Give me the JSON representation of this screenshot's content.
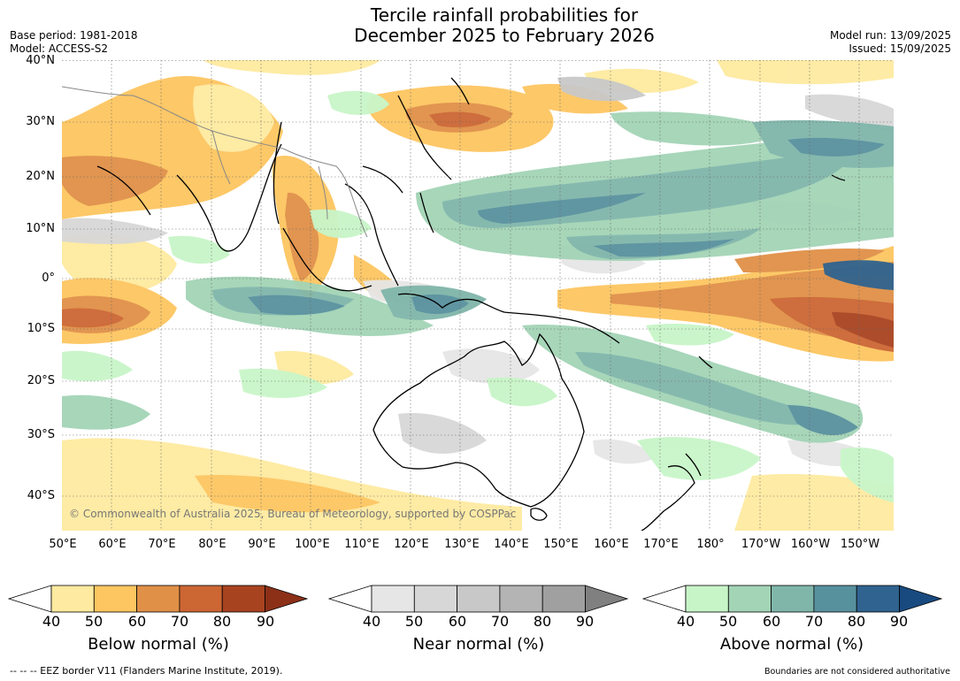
{
  "header": {
    "title_line1": "Tercile rainfall probabilities for",
    "title_line2": "December 2025 to February 2026",
    "base_period": "Base period: 1981-2018",
    "model": "Model: ACCESS-S2",
    "model_run": "Model run: 13/09/2025",
    "issued": "Issued: 15/09/2025"
  },
  "map": {
    "copyright": "© Commonwealth of Australia 2025, Bureau of Meteorology, supported by COSPPac",
    "lat_labels": [
      "40°N",
      "30°N",
      "20°N",
      "10°N",
      "0°",
      "10°S",
      "20°S",
      "30°S",
      "40°S"
    ],
    "lon_labels": [
      "50°E",
      "60°E",
      "70°E",
      "80°E",
      "90°E",
      "100°E",
      "110°E",
      "120°E",
      "130°E",
      "140°E",
      "150°E",
      "160°E",
      "170°E",
      "180°",
      "170°W",
      "160°W",
      "150°W"
    ]
  },
  "colorbars": [
    {
      "title": "Below normal (%)",
      "ticks": [
        "40",
        "50",
        "60",
        "70",
        "80",
        "90"
      ],
      "colors": [
        "#ffffff",
        "#feeaa0",
        "#fdc660",
        "#e09047",
        "#cc6633",
        "#a84320",
        "#8c3018"
      ]
    },
    {
      "title": "Near normal (%)",
      "ticks": [
        "40",
        "50",
        "60",
        "70",
        "80",
        "90"
      ],
      "colors": [
        "#ffffff",
        "#e6e6e6",
        "#d7d7d7",
        "#c8c8c8",
        "#b4b4b4",
        "#a0a0a0",
        "#808080"
      ]
    },
    {
      "title": "Above normal (%)",
      "ticks": [
        "40",
        "50",
        "60",
        "70",
        "80",
        "90"
      ],
      "colors": [
        "#ffffff",
        "#c8f5c8",
        "#a3d4b6",
        "#80b6aa",
        "#58919e",
        "#30638f",
        "#184a80"
      ]
    }
  ],
  "footer": {
    "eez_note": "--  --  -- EEZ border V11 (Flanders Marine Institute, 2019).",
    "boundaries_note": "Boundaries are not considered authoritative"
  }
}
